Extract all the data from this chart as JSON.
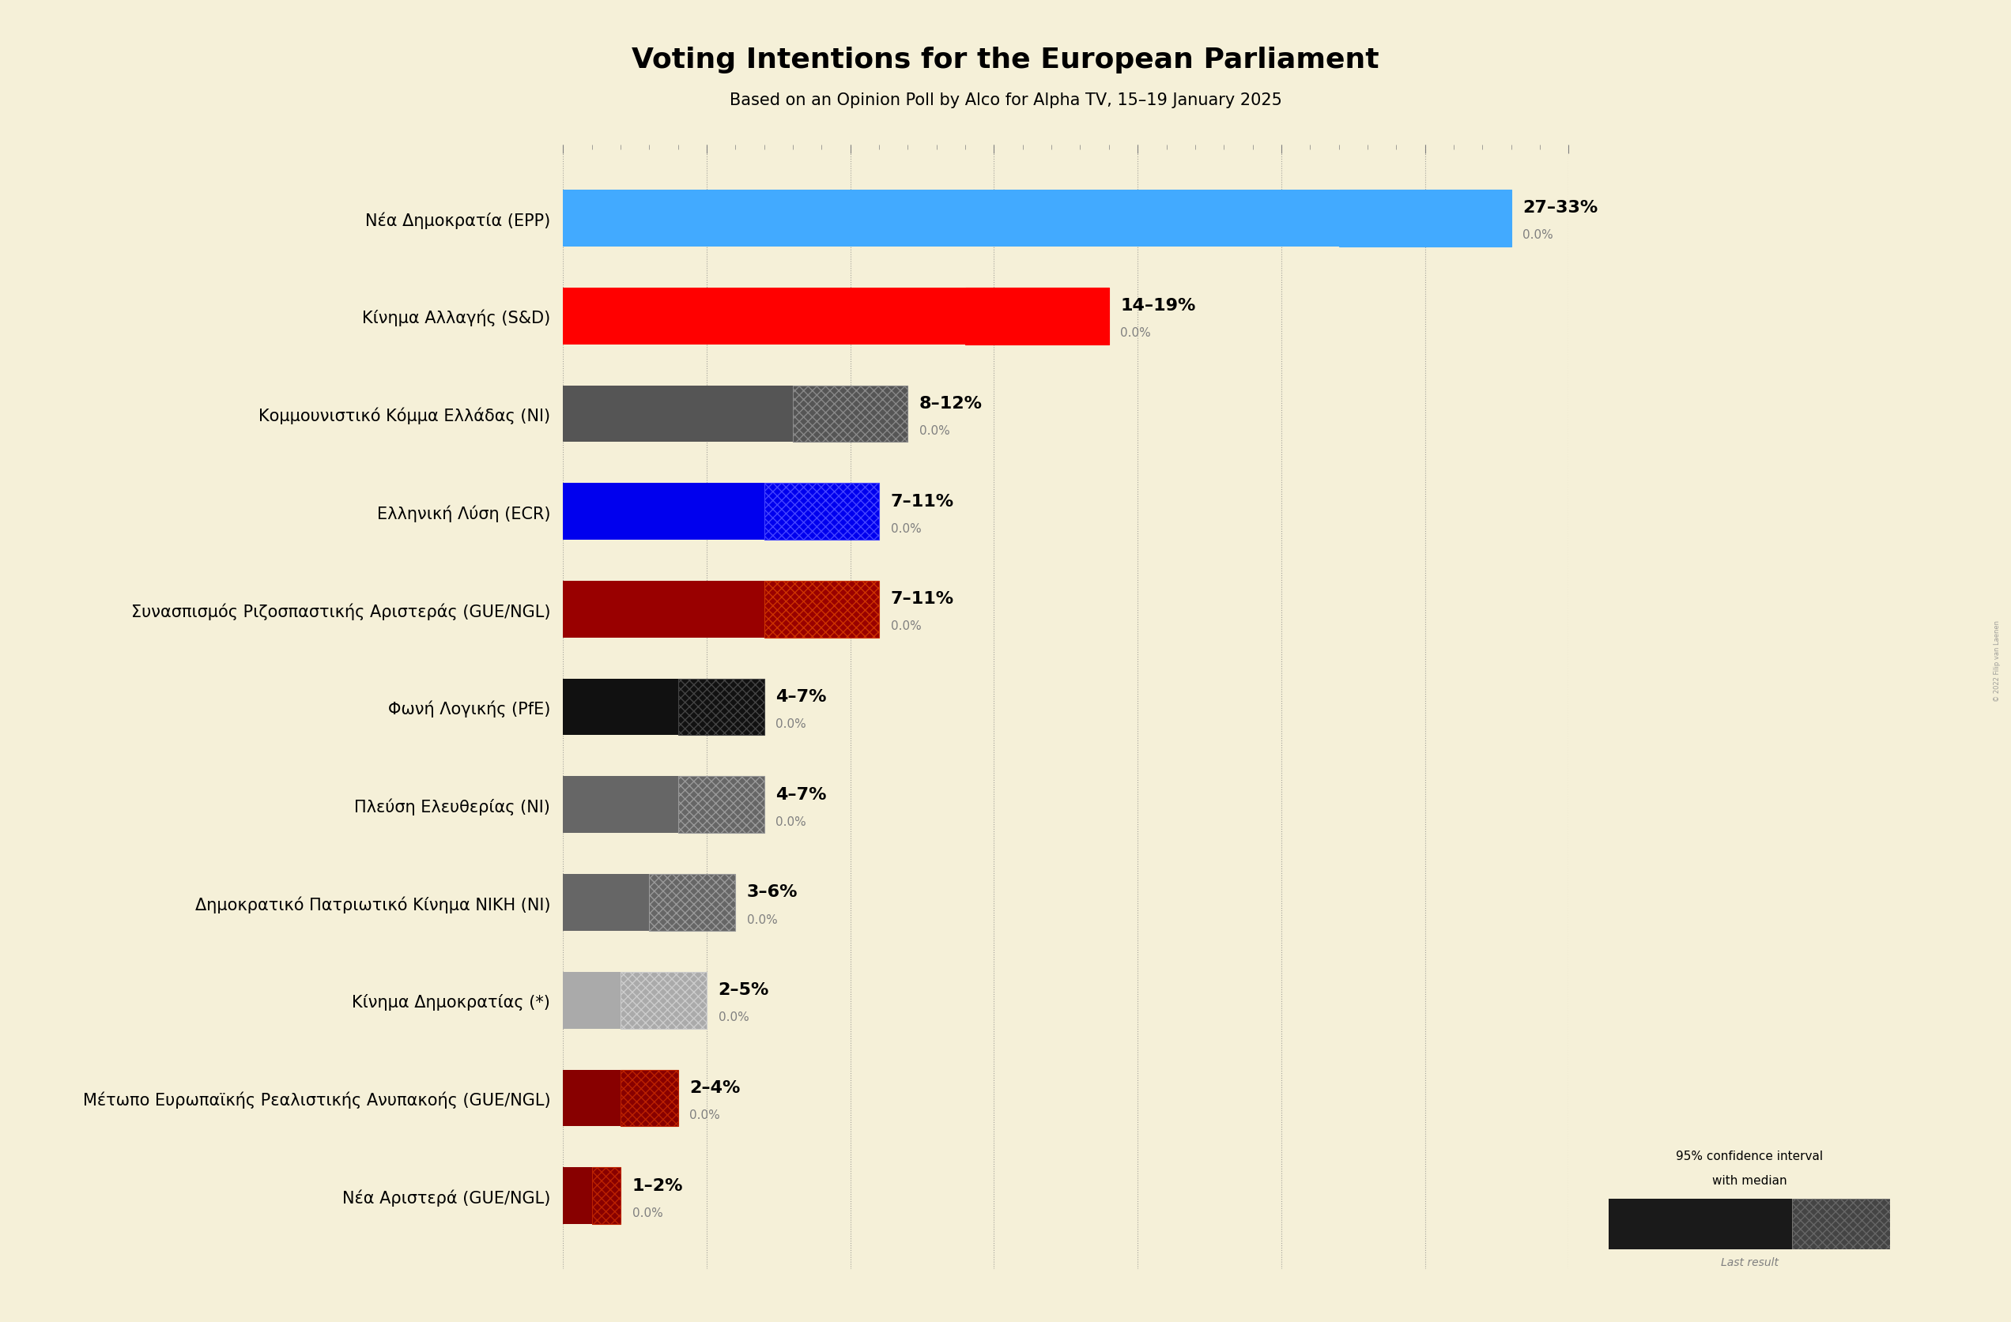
{
  "title": "Voting Intentions for the European Parliament",
  "subtitle": "Based on an Opinion Poll by Alco for Alpha TV, 15–19 January 2025",
  "background_color": "#f5f0d8",
  "parties": [
    {
      "name": "Nέα Δημοκρατία (EPP)",
      "low": 27,
      "high": 33,
      "median": 0.0,
      "color": "#42aaff",
      "hatch": "xxx",
      "hatch_color": "#42aaff",
      "label_bold": true
    },
    {
      "name": "Κίνημα Αλλαγής (S&D)",
      "low": 14,
      "high": 19,
      "median": 0.0,
      "color": "#ff0000",
      "hatch": "xxx",
      "hatch_color": "#ff0000",
      "label_bold": true
    },
    {
      "name": "Κομμουνιστικό Κόμμα Ελλάδας (NI)",
      "low": 8,
      "high": 12,
      "median": 0.0,
      "color": "#555555",
      "hatch": "xxx",
      "hatch_color": "#888888",
      "label_bold": false
    },
    {
      "name": "Ελληνική Λύση (ECR)",
      "low": 7,
      "high": 11,
      "median": 0.0,
      "color": "#0000ee",
      "hatch": "xxx",
      "hatch_color": "#4444ff",
      "label_bold": true
    },
    {
      "name": "Συνασπισμός Ριζοσπαστικής Αριστεράς (GUE/NGL)",
      "low": 7,
      "high": 11,
      "median": 0.0,
      "color": "#990000",
      "hatch": "xxx",
      "hatch_color": "#cc3300",
      "label_bold": false
    },
    {
      "name": "Φωνή Λογικής (PfE)",
      "low": 4,
      "high": 7,
      "median": 0.0,
      "color": "#111111",
      "hatch": "xxx",
      "hatch_color": "#444444",
      "label_bold": false
    },
    {
      "name": "Πλεύση Ελευθερίας (NI)",
      "low": 4,
      "high": 7,
      "median": 0.0,
      "color": "#666666",
      "hatch": "xxx",
      "hatch_color": "#999999",
      "label_bold": false
    },
    {
      "name": "Δημοκρατικό Πατριωτικό Κίνημα ΝΙΚΗ (NI)",
      "low": 3,
      "high": 6,
      "median": 0.0,
      "color": "#666666",
      "hatch": "xxx",
      "hatch_color": "#999999",
      "label_bold": false
    },
    {
      "name": "Κίνημα Δημοκρατίας (*)",
      "low": 2,
      "high": 5,
      "median": 0.0,
      "color": "#aaaaaa",
      "hatch": "xxx",
      "hatch_color": "#cccccc",
      "label_bold": false
    },
    {
      "name": "Μέτωπο Ευρωπαϊκής Ρεαλιστικής Ανυπακοής (GUE/NGL)",
      "low": 2,
      "high": 4,
      "median": 0.0,
      "color": "#880000",
      "hatch": "xxx",
      "hatch_color": "#bb2200",
      "label_bold": false
    },
    {
      "name": "Νέα Αριστερά (GUE/NGL)",
      "low": 1,
      "high": 2,
      "median": 0.0,
      "color": "#880000",
      "hatch": "xxx",
      "hatch_color": "#bb2200",
      "label_bold": false
    }
  ],
  "xlim": [
    0,
    35
  ],
  "xtick_major": [
    0,
    5,
    10,
    15,
    20,
    25,
    30,
    35
  ],
  "xtick_minor_step": 1,
  "title_fontsize": 26,
  "subtitle_fontsize": 15,
  "label_fontsize": 15,
  "range_fontsize": 16,
  "median_fontsize": 11,
  "watermark": "© 2022 Filip van Laenen"
}
